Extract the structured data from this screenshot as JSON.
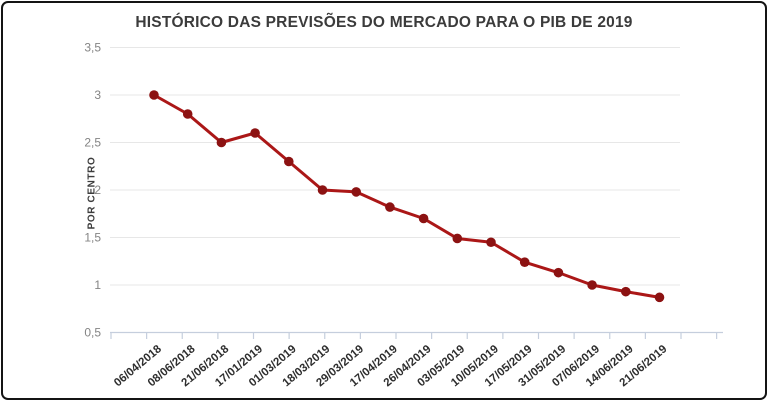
{
  "chart_data": {
    "type": "line",
    "title": "HISTÓRICO DAS PREVISÕES DO MERCADO PARA O PIB DE 2019",
    "ylabel": "POR CENTRO",
    "xlabel": "",
    "categories": [
      "06/04/2018",
      "08/06/2018",
      "21/06/2018",
      "17/01/2019",
      "01/03/2019",
      "18/03/2019",
      "29/03/2019",
      "17/04/2019",
      "26/04/2019",
      "03/05/2019",
      "10/05/2019",
      "17/05/2019",
      "31/05/2019",
      "07/06/2019",
      "14/06/2019",
      "21/06/2019"
    ],
    "values": [
      3.0,
      2.8,
      2.5,
      2.6,
      2.3,
      2.0,
      1.98,
      1.82,
      1.7,
      1.49,
      1.45,
      1.24,
      1.13,
      1.0,
      0.93,
      0.87
    ],
    "ylim": [
      0.5,
      3.5
    ],
    "yticks": [
      3.5,
      3.0,
      2.5,
      2.0,
      1.5,
      1.0,
      0.5
    ],
    "ytick_labels": [
      "3,5",
      "3",
      "2,5",
      "2",
      "1,5",
      "1",
      "0,5"
    ],
    "grid": true,
    "legend": false,
    "colors": {
      "line": "#ab1717",
      "marker": "#8c1212",
      "gridline": "#e7e7e7",
      "axis": "#c5cedd",
      "title_text": "#3b3b3b",
      "ytick_text": "#848484",
      "xtick_text": "#2e2e2e",
      "frame_border": "#141414",
      "background": "#ffffff"
    }
  }
}
